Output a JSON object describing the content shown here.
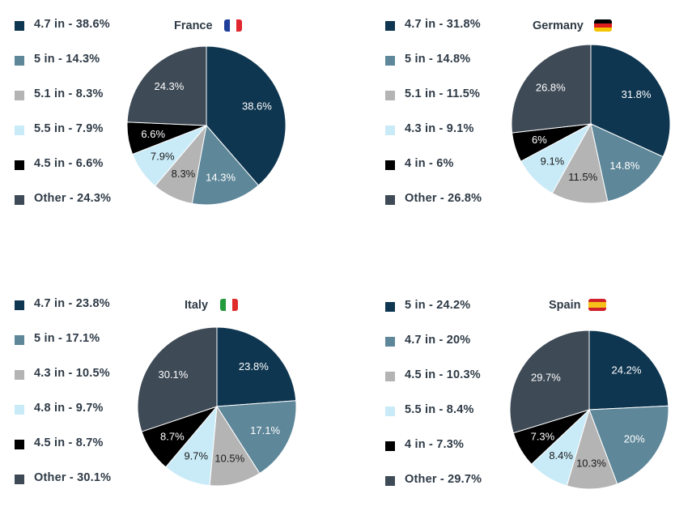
{
  "colors": {
    "navy": "#0f3650",
    "steel": "#5e8799",
    "gray": "#b4b4b4",
    "lightblue": "#c9ebf8",
    "black": "#000000",
    "slate": "#3e4a56"
  },
  "chart_data": [
    {
      "type": "pie",
      "title": "France",
      "flag": "france-flag",
      "legend": [
        "4.7 in - 38.6%",
        "5 in - 14.3%",
        "5.1 in - 8.3%",
        "5.5 in - 7.9%",
        "4.5 in - 6.6%",
        "Other - 24.3%"
      ],
      "categories": [
        "4.7 in",
        "5 in",
        "5.1 in",
        "5.5 in",
        "4.5 in",
        "Other"
      ],
      "values": [
        38.6,
        14.3,
        8.3,
        7.9,
        6.6,
        24.3
      ],
      "labels": [
        "38.6%",
        "14.3%",
        "8.3%",
        "7.9%",
        "6.6%",
        "24.3%"
      ],
      "colors": [
        "#0f3650",
        "#5e8799",
        "#b4b4b4",
        "#c9ebf8",
        "#000000",
        "#3e4a56"
      ]
    },
    {
      "type": "pie",
      "title": "Germany",
      "flag": "germany-flag",
      "legend": [
        "4.7 in - 31.8%",
        "5 in - 14.8%",
        "5.1 in - 11.5%",
        "4.3 in - 9.1%",
        "4 in - 6%",
        "Other - 26.8%"
      ],
      "categories": [
        "4.7 in",
        "5 in",
        "5.1 in",
        "4.3 in",
        "4 in",
        "Other"
      ],
      "values": [
        31.8,
        14.8,
        11.5,
        9.1,
        6,
        26.8
      ],
      "labels": [
        "31.8%",
        "14.8%",
        "11.5%",
        "9.1%",
        "6%",
        "26.8%"
      ],
      "colors": [
        "#0f3650",
        "#5e8799",
        "#b4b4b4",
        "#c9ebf8",
        "#000000",
        "#3e4a56"
      ]
    },
    {
      "type": "pie",
      "title": "Italy",
      "flag": "italy-flag",
      "legend": [
        "4.7 in - 23.8%",
        "5 in - 17.1%",
        "4.3 in - 10.5%",
        "4.8 in - 9.7%",
        "4.5 in - 8.7%",
        "Other - 30.1%"
      ],
      "categories": [
        "4.7 in",
        "5 in",
        "4.3 in",
        "4.8 in",
        "4.5 in",
        "Other"
      ],
      "values": [
        23.8,
        17.1,
        10.5,
        9.7,
        8.7,
        30.1
      ],
      "labels": [
        "23.8%",
        "17.1%",
        "10.5%",
        "9.7%",
        "8.7%",
        "30.1%"
      ],
      "colors": [
        "#0f3650",
        "#5e8799",
        "#b4b4b4",
        "#c9ebf8",
        "#000000",
        "#3e4a56"
      ]
    },
    {
      "type": "pie",
      "title": "Spain",
      "flag": "spain-flag",
      "legend": [
        "5 in - 24.2%",
        "4.7 in - 20%",
        "4.5 in - 10.3%",
        "5.5 in - 8.4%",
        "4 in - 7.3%",
        "Other - 29.7%"
      ],
      "categories": [
        "5 in",
        "4.7 in",
        "4.5 in",
        "5.5 in",
        "4 in",
        "Other"
      ],
      "values": [
        24.2,
        20,
        10.3,
        8.4,
        7.3,
        29.7
      ],
      "labels": [
        "24.2%",
        "20%",
        "10.3%",
        "8.4%",
        "7.3%",
        "29.7%"
      ],
      "colors": [
        "#0f3650",
        "#5e8799",
        "#b4b4b4",
        "#c9ebf8",
        "#000000",
        "#3e4a56"
      ]
    }
  ]
}
